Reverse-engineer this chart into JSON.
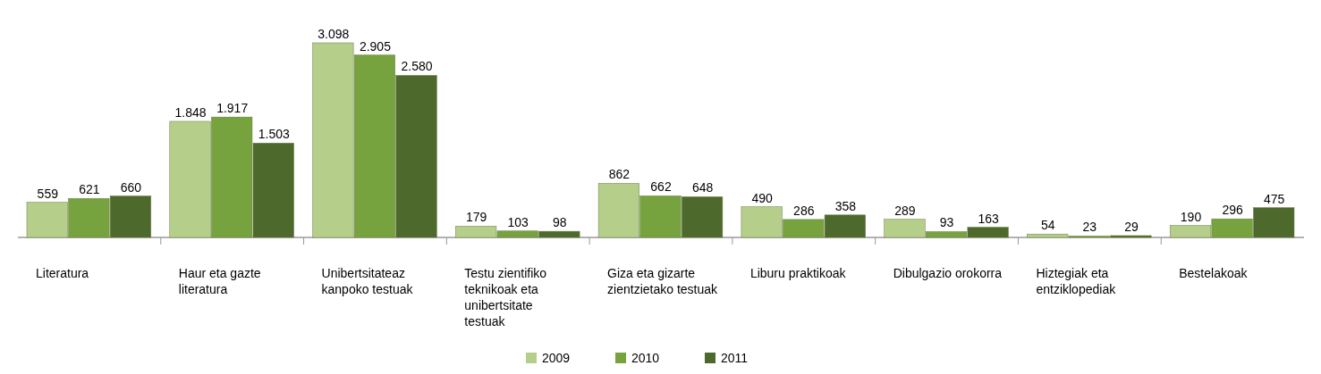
{
  "chart_data": {
    "type": "bar",
    "categories": [
      "Literatura",
      "Haur eta gazte literatura",
      "Unibertsitateaz kanpoko testuak",
      "Testu zientifiko teknikoak eta unibertsitate testuak",
      "Giza eta gizarte zientzietako testuak",
      "Liburu praktikoak",
      "Dibulgazio orokorra",
      "Hiztegiak eta entziklopediak",
      "Bestelakoak"
    ],
    "series": [
      {
        "name": "2009",
        "color": "#b5cf8a",
        "values": [
          559,
          1848,
          3098,
          179,
          862,
          490,
          289,
          54,
          190
        ],
        "value_labels": [
          "559",
          "1.848",
          "3.098",
          "179",
          "862",
          "490",
          "289",
          "54",
          "190"
        ]
      },
      {
        "name": "2010",
        "color": "#77a33f",
        "values": [
          621,
          1917,
          2905,
          103,
          662,
          286,
          93,
          23,
          296
        ],
        "value_labels": [
          "621",
          "1.917",
          "2.905",
          "103",
          "662",
          "286",
          "93",
          "23",
          "296"
        ]
      },
      {
        "name": "2011",
        "color": "#4d6a2c",
        "values": [
          660,
          1503,
          2580,
          98,
          648,
          358,
          163,
          29,
          475
        ],
        "value_labels": [
          "660",
          "1.503",
          "2.580",
          "98",
          "648",
          "358",
          "163",
          "29",
          "475"
        ]
      }
    ],
    "legend": "bottom"
  }
}
